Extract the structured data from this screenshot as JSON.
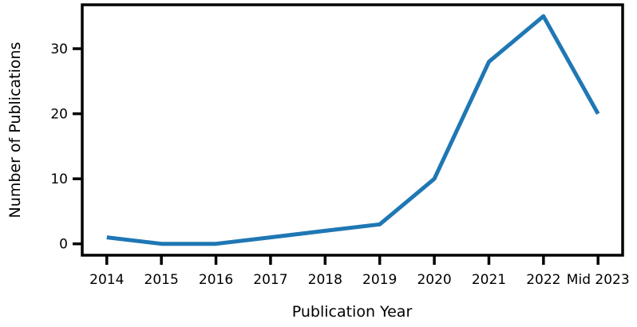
{
  "chart_data": {
    "type": "line",
    "title": "",
    "xlabel": "Publication Year",
    "ylabel": "Number of Publications",
    "categories": [
      "2014",
      "2015",
      "2016",
      "2017",
      "2018",
      "2019",
      "2020",
      "2021",
      "2022",
      "Mid 2023"
    ],
    "series": [
      {
        "name": "Number of Publications",
        "values": [
          1,
          0,
          0,
          1,
          2,
          3,
          10,
          28,
          35,
          20
        ]
      }
    ],
    "yticks": [
      0,
      10,
      20,
      30
    ],
    "ylim": [
      -1.75,
      36.75
    ],
    "xlim_index": [
      -0.45,
      9.45
    ],
    "grid": false,
    "legend_visible": false,
    "colors": {
      "line": "#1f77b4",
      "axis": "#000000",
      "text": "#000000",
      "background": "#ffffff"
    }
  }
}
